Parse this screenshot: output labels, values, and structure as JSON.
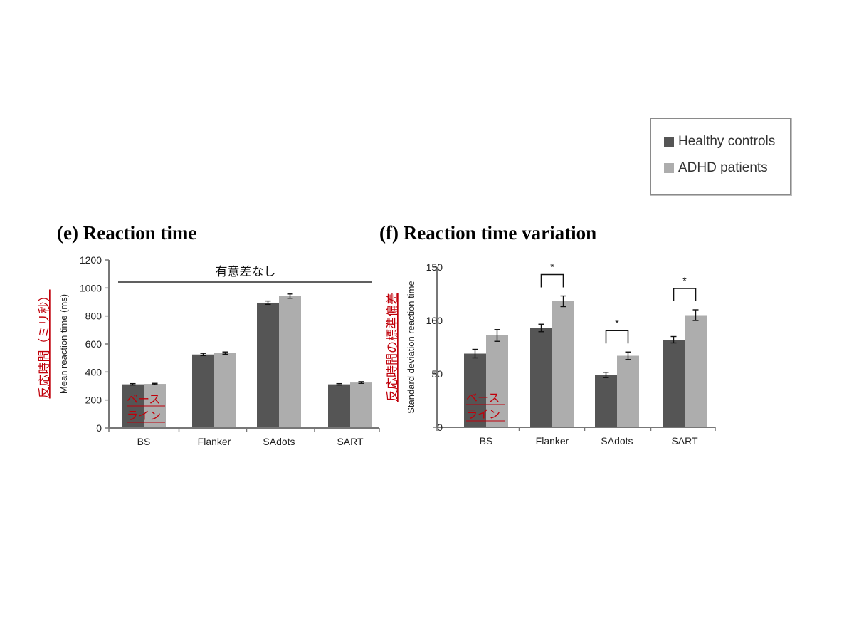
{
  "legend": {
    "healthy_label": "Healthy controls",
    "adhd_label": "ADHD patients"
  },
  "colors": {
    "healthy": "#555555",
    "adhd": "#adadad",
    "annotation_red": "#c0000a",
    "axis": "#777777"
  },
  "chart_data": [
    {
      "id": "e",
      "type": "bar",
      "title": "(e) Reaction time",
      "ylabel": "Mean reaction time (ms)",
      "ylabel_annotation": "反応時間（ミリ秒）",
      "ylim": [
        0,
        1200
      ],
      "yticks": [
        0,
        200,
        400,
        600,
        800,
        1000,
        1200
      ],
      "categories": [
        "BS",
        "Flanker",
        "SAdots",
        "SART"
      ],
      "series": [
        {
          "name": "Healthy controls",
          "values": [
            312,
            525,
            895,
            312
          ],
          "errors": [
            5,
            8,
            12,
            5
          ]
        },
        {
          "name": "ADHD patients",
          "values": [
            315,
            535,
            942,
            325
          ],
          "errors": [
            4,
            8,
            15,
            6
          ]
        }
      ],
      "baseline_annotation": [
        "ベース",
        "ライン"
      ],
      "significance": {
        "type": "line",
        "span": "all",
        "label": "有意差なし"
      }
    },
    {
      "id": "f",
      "type": "bar",
      "title": "(f) Reaction time variation",
      "ylabel": "Standard deviation reaction time",
      "ylabel_annotation": "反応時間の標準偏差",
      "ylim": [
        0,
        150
      ],
      "yticks": [
        0,
        50,
        100,
        150
      ],
      "categories": [
        "BS",
        "Flanker",
        "SAdots",
        "SART"
      ],
      "series": [
        {
          "name": "Healthy controls",
          "values": [
            69,
            93,
            49,
            82
          ],
          "errors": [
            4,
            3.5,
            2.5,
            3
          ]
        },
        {
          "name": "ADHD patients",
          "values": [
            86,
            118,
            67,
            105
          ],
          "errors": [
            5.5,
            5,
            3.5,
            5
          ]
        }
      ],
      "baseline_annotation": [
        "ベース",
        "ライン"
      ],
      "significance": {
        "type": "brackets",
        "categories": [
          "Flanker",
          "SAdots",
          "SART"
        ],
        "label": "*"
      }
    }
  ]
}
